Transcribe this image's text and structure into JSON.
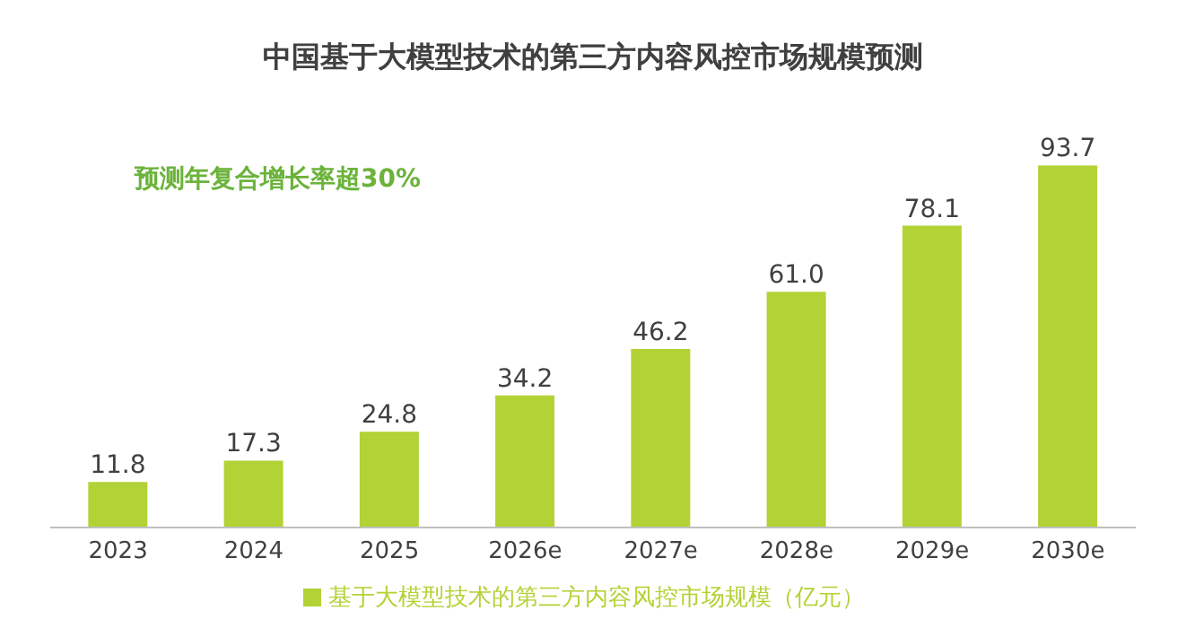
{
  "chart_data": {
    "type": "bar",
    "title": "中国基于大模型技术的第三方内容风控市场规模预测",
    "annotations": [
      "预测年复合增长率超30%"
    ],
    "categories": [
      "2023",
      "2024",
      "2025",
      "2026e",
      "2027e",
      "2028e",
      "2029e",
      "2030e"
    ],
    "series": [
      {
        "name": "基于大模型技术的第三方内容风控市场规模（亿元）",
        "color": "#b2d235",
        "values": [
          11.8,
          17.3,
          24.8,
          34.2,
          46.2,
          61.0,
          78.1,
          93.7
        ],
        "value_labels": [
          "11.8",
          "17.3",
          "24.8",
          "34.2",
          "46.2",
          "61.0",
          "78.1",
          "93.7"
        ]
      }
    ],
    "legend": "bottom",
    "grid": false,
    "tick_labels": "x"
  }
}
